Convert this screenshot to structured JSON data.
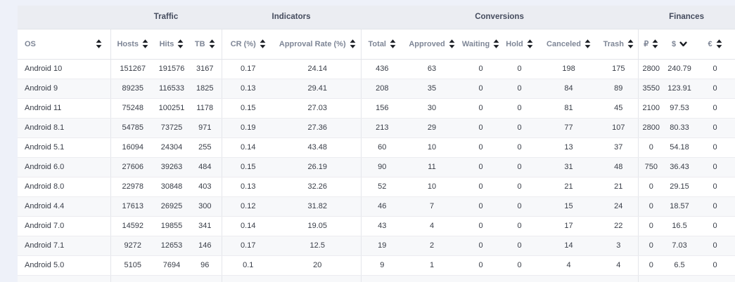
{
  "table": {
    "groups": [
      {
        "label": "",
        "span": 1
      },
      {
        "label": "Traffic",
        "span": 3
      },
      {
        "label": "Indicators",
        "span": 2
      },
      {
        "label": "Conversions",
        "span": 6
      },
      {
        "label": "Finances",
        "span": 3
      }
    ],
    "columns": [
      {
        "key": "os",
        "label": "OS",
        "sort": "none"
      },
      {
        "key": "hosts",
        "label": "Hosts",
        "sort": "none"
      },
      {
        "key": "hits",
        "label": "Hits",
        "sort": "none"
      },
      {
        "key": "tb",
        "label": "TB",
        "sort": "none"
      },
      {
        "key": "cr",
        "label": "CR (%)",
        "sort": "none"
      },
      {
        "key": "approval-rate",
        "label": "Approval Rate (%)",
        "sort": "none"
      },
      {
        "key": "total",
        "label": "Total",
        "sort": "none"
      },
      {
        "key": "approved",
        "label": "Approved",
        "sort": "none"
      },
      {
        "key": "waiting",
        "label": "Waiting",
        "sort": "none"
      },
      {
        "key": "hold",
        "label": "Hold",
        "sort": "none"
      },
      {
        "key": "canceled",
        "label": "Canceled",
        "sort": "none"
      },
      {
        "key": "trash",
        "label": "Trash",
        "sort": "none"
      },
      {
        "key": "rub",
        "label": "₽",
        "sort": "none"
      },
      {
        "key": "usd",
        "label": "$",
        "sort": "desc"
      },
      {
        "key": "eur",
        "label": "€",
        "sort": "none"
      }
    ],
    "rows": [
      [
        "Android 10",
        "151267",
        "191576",
        "3167",
        "0.17",
        "24.14",
        "436",
        "63",
        "0",
        "0",
        "198",
        "175",
        "2800",
        "240.79",
        "0"
      ],
      [
        "Android 9",
        "89235",
        "116533",
        "1825",
        "0.13",
        "29.41",
        "208",
        "35",
        "0",
        "0",
        "84",
        "89",
        "3550",
        "123.91",
        "0"
      ],
      [
        "Android 11",
        "75248",
        "100251",
        "1178",
        "0.15",
        "27.03",
        "156",
        "30",
        "0",
        "0",
        "81",
        "45",
        "2100",
        "97.53",
        "0"
      ],
      [
        "Android 8.1",
        "54785",
        "73725",
        "971",
        "0.19",
        "27.36",
        "213",
        "29",
        "0",
        "0",
        "77",
        "107",
        "2800",
        "80.33",
        "0"
      ],
      [
        "Android 5.1",
        "16094",
        "24304",
        "255",
        "0.14",
        "43.48",
        "60",
        "10",
        "0",
        "0",
        "13",
        "37",
        "0",
        "54.18",
        "0"
      ],
      [
        "Android 6.0",
        "27606",
        "39263",
        "484",
        "0.15",
        "26.19",
        "90",
        "11",
        "0",
        "0",
        "31",
        "48",
        "750",
        "36.43",
        "0"
      ],
      [
        "Android 8.0",
        "22978",
        "30848",
        "403",
        "0.13",
        "32.26",
        "52",
        "10",
        "0",
        "0",
        "21",
        "21",
        "0",
        "29.15",
        "0"
      ],
      [
        "Android 4.4",
        "17613",
        "26925",
        "300",
        "0.12",
        "31.82",
        "46",
        "7",
        "0",
        "0",
        "15",
        "24",
        "0",
        "18.57",
        "0"
      ],
      [
        "Android 7.0",
        "14592",
        "19855",
        "341",
        "0.14",
        "19.05",
        "43",
        "4",
        "0",
        "0",
        "17",
        "22",
        "0",
        "16.5",
        "0"
      ],
      [
        "Android 7.1",
        "9272",
        "12653",
        "146",
        "0.17",
        "12.5",
        "19",
        "2",
        "0",
        "0",
        "14",
        "3",
        "0",
        "7.03",
        "0"
      ],
      [
        "Android 5.0",
        "5105",
        "7694",
        "96",
        "0.1",
        "20",
        "9",
        "1",
        "0",
        "0",
        "4",
        "4",
        "0",
        "6.5",
        "0"
      ]
    ]
  },
  "icons": {
    "sortable": "sort-icon",
    "sorted_desc": "chevron-down-icon"
  },
  "colors": {
    "page_background": "#eef1f9",
    "group_header_background": "#ebedf2",
    "header_text": "#7e8696",
    "group_title_text": "#454c5e",
    "data_text": "#383d47",
    "sort_icon": "#1a1d23",
    "zebra_row": "#f7f8fa"
  }
}
